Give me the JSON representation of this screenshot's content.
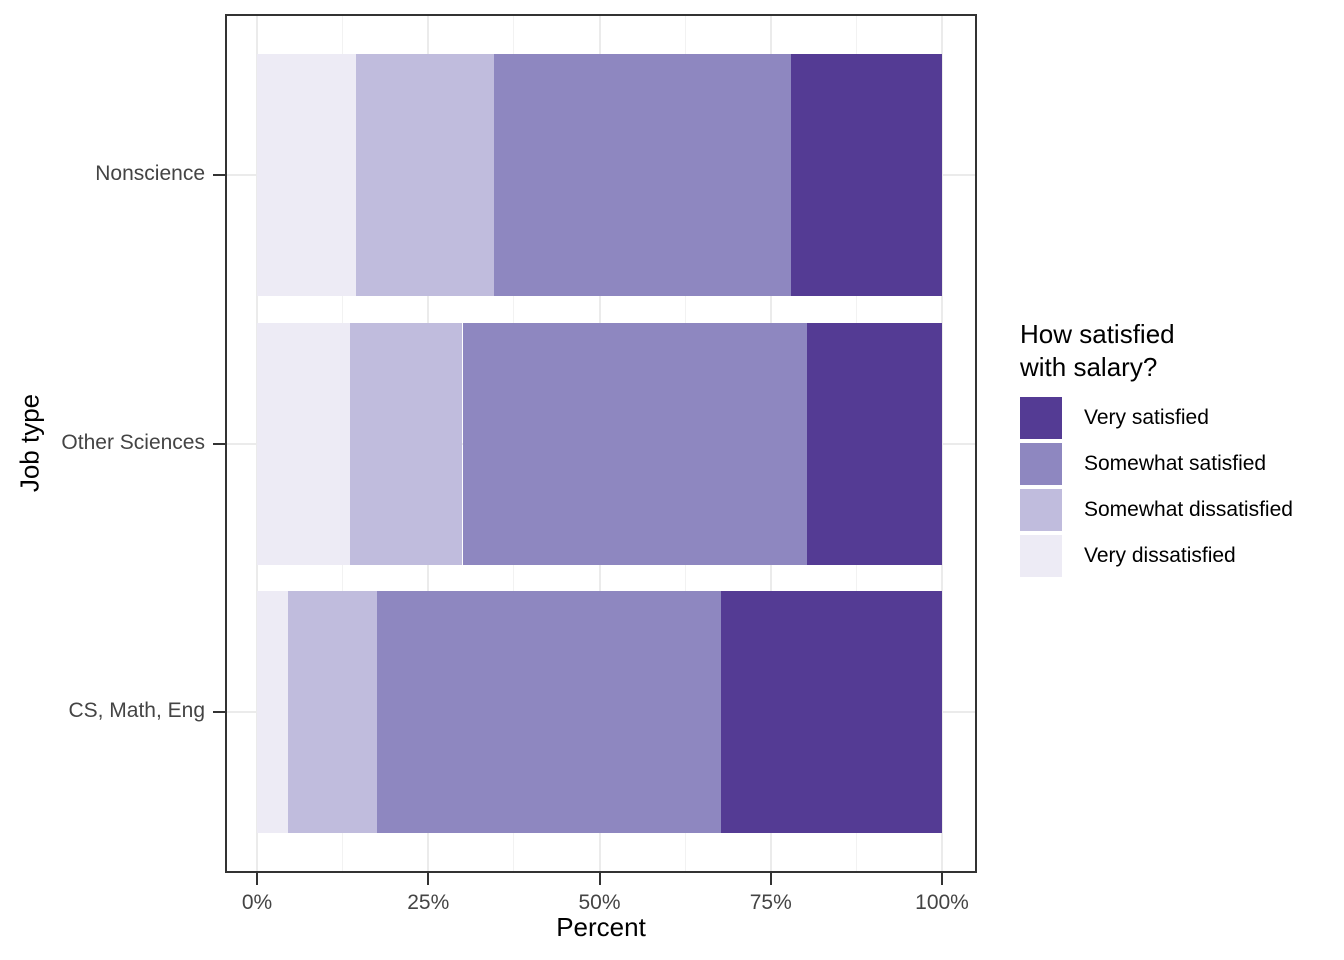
{
  "chart_data": {
    "type": "bar",
    "orientation": "horizontal",
    "stacked": true,
    "xlabel": "Percent",
    "ylabel": "Job type",
    "categories": [
      "Nonscience",
      "Other Sciences",
      "CS, Math, Eng"
    ],
    "x_ticks": [
      {
        "value": 0,
        "label": "0%"
      },
      {
        "value": 25,
        "label": "25%"
      },
      {
        "value": 50,
        "label": "50%"
      },
      {
        "value": 75,
        "label": "75%"
      },
      {
        "value": 100,
        "label": "100%"
      }
    ],
    "x_minor_ticks": [
      12.5,
      37.5,
      62.5,
      87.5
    ],
    "xlim": [
      0,
      100
    ],
    "grid": true,
    "series": [
      {
        "name": "Very dissatisfied",
        "color": "#edebf5",
        "values": [
          14.5,
          13.6,
          4.5
        ]
      },
      {
        "name": "Somewhat dissatisfied",
        "color": "#c0bcdd",
        "values": [
          20.1,
          16.4,
          13.0
        ]
      },
      {
        "name": "Somewhat satisfied",
        "color": "#8e87c0",
        "values": [
          43.4,
          50.3,
          50.2
        ]
      },
      {
        "name": "Very satisfied",
        "color": "#543b94",
        "values": [
          22.0,
          19.7,
          32.3
        ]
      }
    ],
    "legend": {
      "title": "How satisfied\nwith salary?",
      "position": "right",
      "entries": [
        {
          "label": "Very satisfied",
          "color": "#543b94"
        },
        {
          "label": "Somewhat satisfied",
          "color": "#8e87c0"
        },
        {
          "label": "Somewhat dissatisfied",
          "color": "#c0bcdd"
        },
        {
          "label": "Very dissatisfied",
          "color": "#edebf5"
        }
      ]
    },
    "colors": {
      "panel_border": "#333333",
      "tick_mark": "#333333",
      "grid_major": "#ebebeb",
      "axis_text": "#444444",
      "title_text": "#000000",
      "background": "#ffffff"
    }
  }
}
